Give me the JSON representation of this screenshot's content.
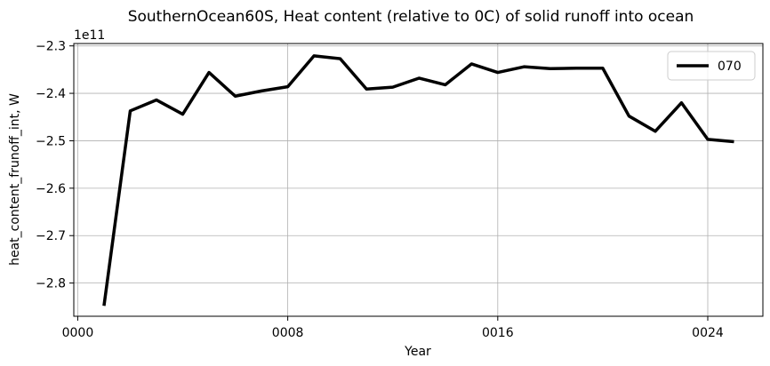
{
  "chart_data": {
    "type": "line",
    "title": "SouthernOcean60S, Heat content (relative to 0C) of solid runoff into ocean",
    "xlabel": "Year",
    "ylabel": "heat_content_frunoff_int, W",
    "offset_text": "1e11",
    "scale_factor": 100000000000.0,
    "x_ticks": [
      0,
      8,
      16,
      24
    ],
    "x_tick_labels": [
      "0000",
      "0008",
      "0016",
      "0024"
    ],
    "y_ticks": [
      -2.8,
      -2.7,
      -2.6,
      -2.5,
      -2.4,
      -2.3
    ],
    "y_tick_labels": [
      "−2.8",
      "−2.7",
      "−2.6",
      "−2.5",
      "−2.4",
      "−2.3"
    ],
    "xlim": [
      -0.15,
      26.1
    ],
    "ylim": [
      -2.87,
      -2.295
    ],
    "grid": true,
    "legend_position": "top-right",
    "series": [
      {
        "name": "070",
        "color": "#000000",
        "x": [
          1,
          2,
          3,
          4,
          5,
          6,
          7,
          8,
          9,
          10,
          11,
          12,
          13,
          14,
          15,
          16,
          17,
          18,
          19,
          20,
          21,
          22,
          23,
          24,
          25
        ],
        "y": [
          -2.848,
          -2.437,
          -2.414,
          -2.444,
          -2.356,
          -2.406,
          -2.395,
          -2.386,
          -2.321,
          -2.327,
          -2.391,
          -2.387,
          -2.368,
          -2.382,
          -2.338,
          -2.356,
          -2.344,
          -2.348,
          -2.347,
          -2.347,
          -2.448,
          -2.48,
          -2.42,
          -2.497,
          -2.502
        ]
      }
    ]
  }
}
